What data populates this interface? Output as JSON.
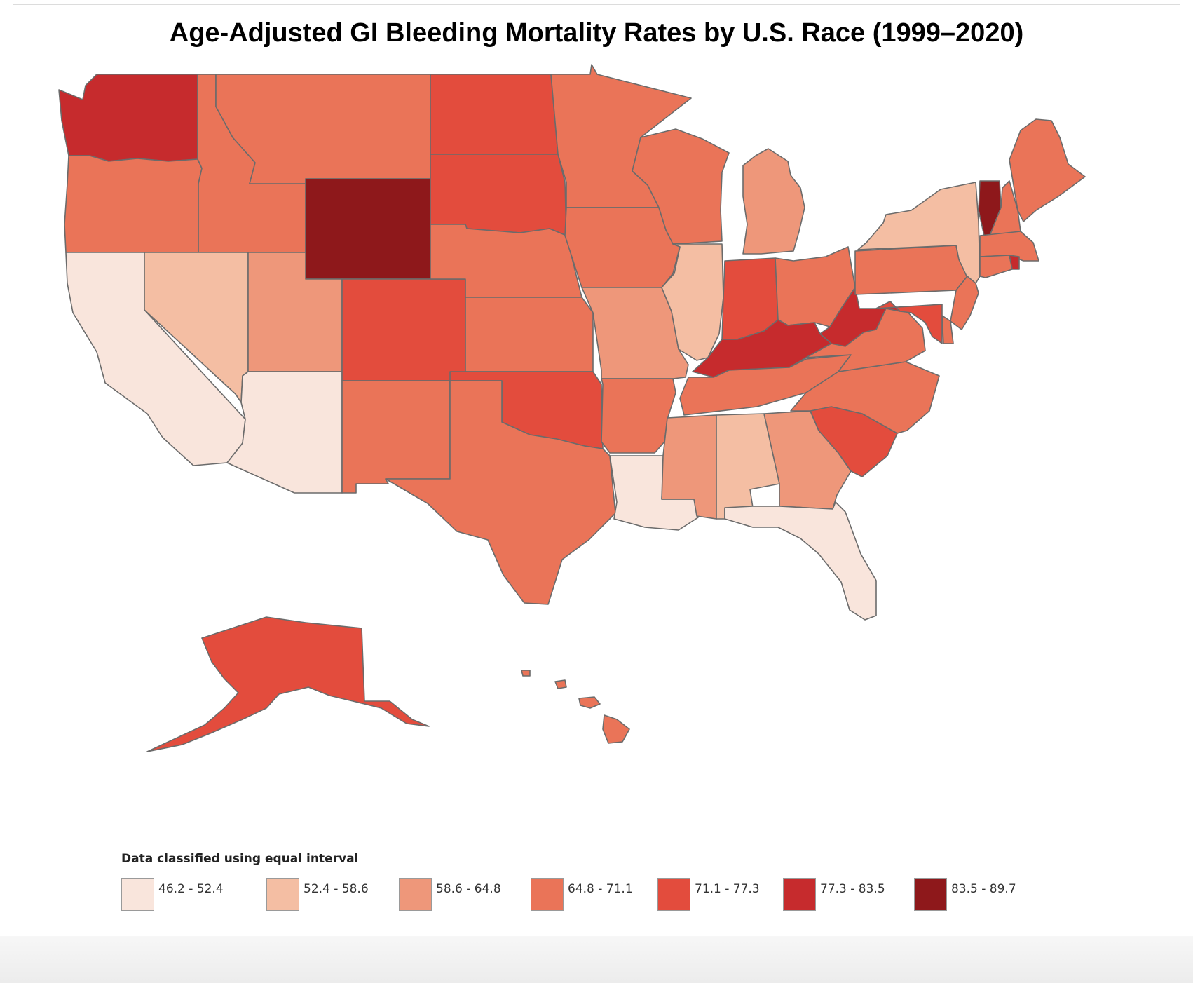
{
  "title": "Age-Adjusted GI Bleeding Mortality Rates by U.S. Race (1999–2020)",
  "legend": {
    "title": "Data classified using equal interval",
    "classes": [
      {
        "label": "46.2 - 52.4",
        "color": "#f9e5dc"
      },
      {
        "label": "52.4 - 58.6",
        "color": "#f4bea3"
      },
      {
        "label": "58.6 - 64.8",
        "color": "#ee977a"
      },
      {
        "label": "64.8 - 71.1",
        "color": "#ea7458"
      },
      {
        "label": "71.1 - 77.3",
        "color": "#e34c3d"
      },
      {
        "label": "77.3 - 83.5",
        "color": "#c62b2d"
      },
      {
        "label": "83.5 - 89.7",
        "color": "#8e181b"
      }
    ]
  },
  "state_class": {
    "Washington": 5,
    "Oregon": 3,
    "California": 0,
    "Idaho": 3,
    "Nevada": 1,
    "Montana": 3,
    "Wyoming": 6,
    "Utah": 2,
    "Arizona": 0,
    "Colorado": 4,
    "New Mexico": 3,
    "North Dakota": 4,
    "South Dakota": 4,
    "Nebraska": 3,
    "Kansas": 3,
    "Oklahoma": 4,
    "Texas": 3,
    "Minnesota": 3,
    "Iowa": 3,
    "Missouri": 2,
    "Arkansas": 3,
    "Louisiana": 0,
    "Wisconsin": 3,
    "Illinois": 1,
    "Michigan": 2,
    "Indiana": 4,
    "Ohio": 3,
    "Kentucky": 5,
    "Tennessee": 3,
    "Mississippi": 2,
    "Alabama": 1,
    "Georgia": 2,
    "Florida": 0,
    "South Carolina": 4,
    "North Carolina": 3,
    "Virginia": 3,
    "West Virginia": 5,
    "Pennsylvania": 3,
    "New York": 1,
    "Vermont": 6,
    "New Hampshire": 3,
    "Maine": 3,
    "Massachusetts": 3,
    "Connecticut": 3,
    "Rhode Island": 5,
    "New Jersey": 3,
    "Delaware": 3,
    "Maryland": 4,
    "Alaska": 4,
    "Hawaii": 3
  }
}
